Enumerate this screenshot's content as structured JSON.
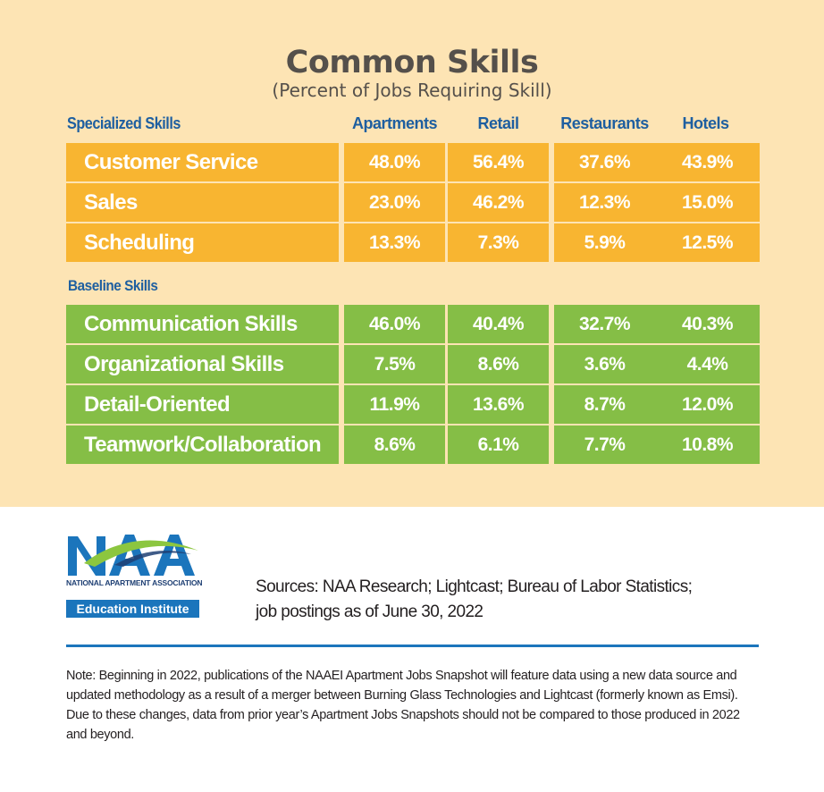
{
  "title": "Common Skills",
  "subtitle": "(Percent of Jobs Requiring Skill)",
  "chart_data": {
    "type": "table",
    "title": "Common Skills",
    "subtitle": "(Percent of Jobs Requiring Skill)",
    "columns": [
      "Apartments",
      "Retail",
      "Restaurants",
      "Hotels"
    ],
    "sections": [
      {
        "name": "Specialized  Skills",
        "color": "#f8b531",
        "rows": [
          {
            "label": "Customer Service",
            "values": [
              "48.0%",
              "56.4%",
              "37.6%",
              "43.9%"
            ]
          },
          {
            "label": "Sales",
            "values": [
              "23.0%",
              "46.2%",
              "12.3%",
              "15.0%"
            ]
          },
          {
            "label": "Scheduling",
            "values": [
              "13.3%",
              "7.3%",
              "5.9%",
              "12.5%"
            ]
          }
        ]
      },
      {
        "name": "Baseline Skills",
        "color": "#85be46",
        "rows": [
          {
            "label": "Communication Skills",
            "values": [
              "46.0%",
              "40.4%",
              "32.7%",
              "40.3%"
            ]
          },
          {
            "label": "Organizational Skills",
            "values": [
              "7.5%",
              "8.6%",
              "3.6%",
              "4.4%"
            ]
          },
          {
            "label": "Detail-Oriented",
            "values": [
              "11.9%",
              "13.6%",
              "8.7%",
              "12.0%"
            ]
          },
          {
            "label": "Teamwork/Collaboration",
            "values": [
              "8.6%",
              "6.1%",
              "7.7%",
              "10.8%"
            ]
          }
        ]
      }
    ]
  },
  "logo": {
    "name": "NAA",
    "tagline": "NATIONAL APARTMENT ASSOCIATION",
    "badge": "Education Institute",
    "colors": {
      "blue": "#1b75bc",
      "green": "#8cc63f",
      "navy": "#1e3f73"
    }
  },
  "sources": {
    "line1": "Sources:  NAA Research; Lightcast; Bureau of Labor Statistics;",
    "line2": "job postings as of June 30, 2022"
  },
  "note": "Note: Beginning in 2022, publications of the NAAEI Apartment Jobs Snapshot will feature data using a new data source and updated methodology as a result of a merger between Burning Glass Technologies and Lightcast (formerly known as Emsi). Due to these changes, data from prior year’s Apartment Jobs Snapshots should not be compared to those produced in 2022 and beyond."
}
